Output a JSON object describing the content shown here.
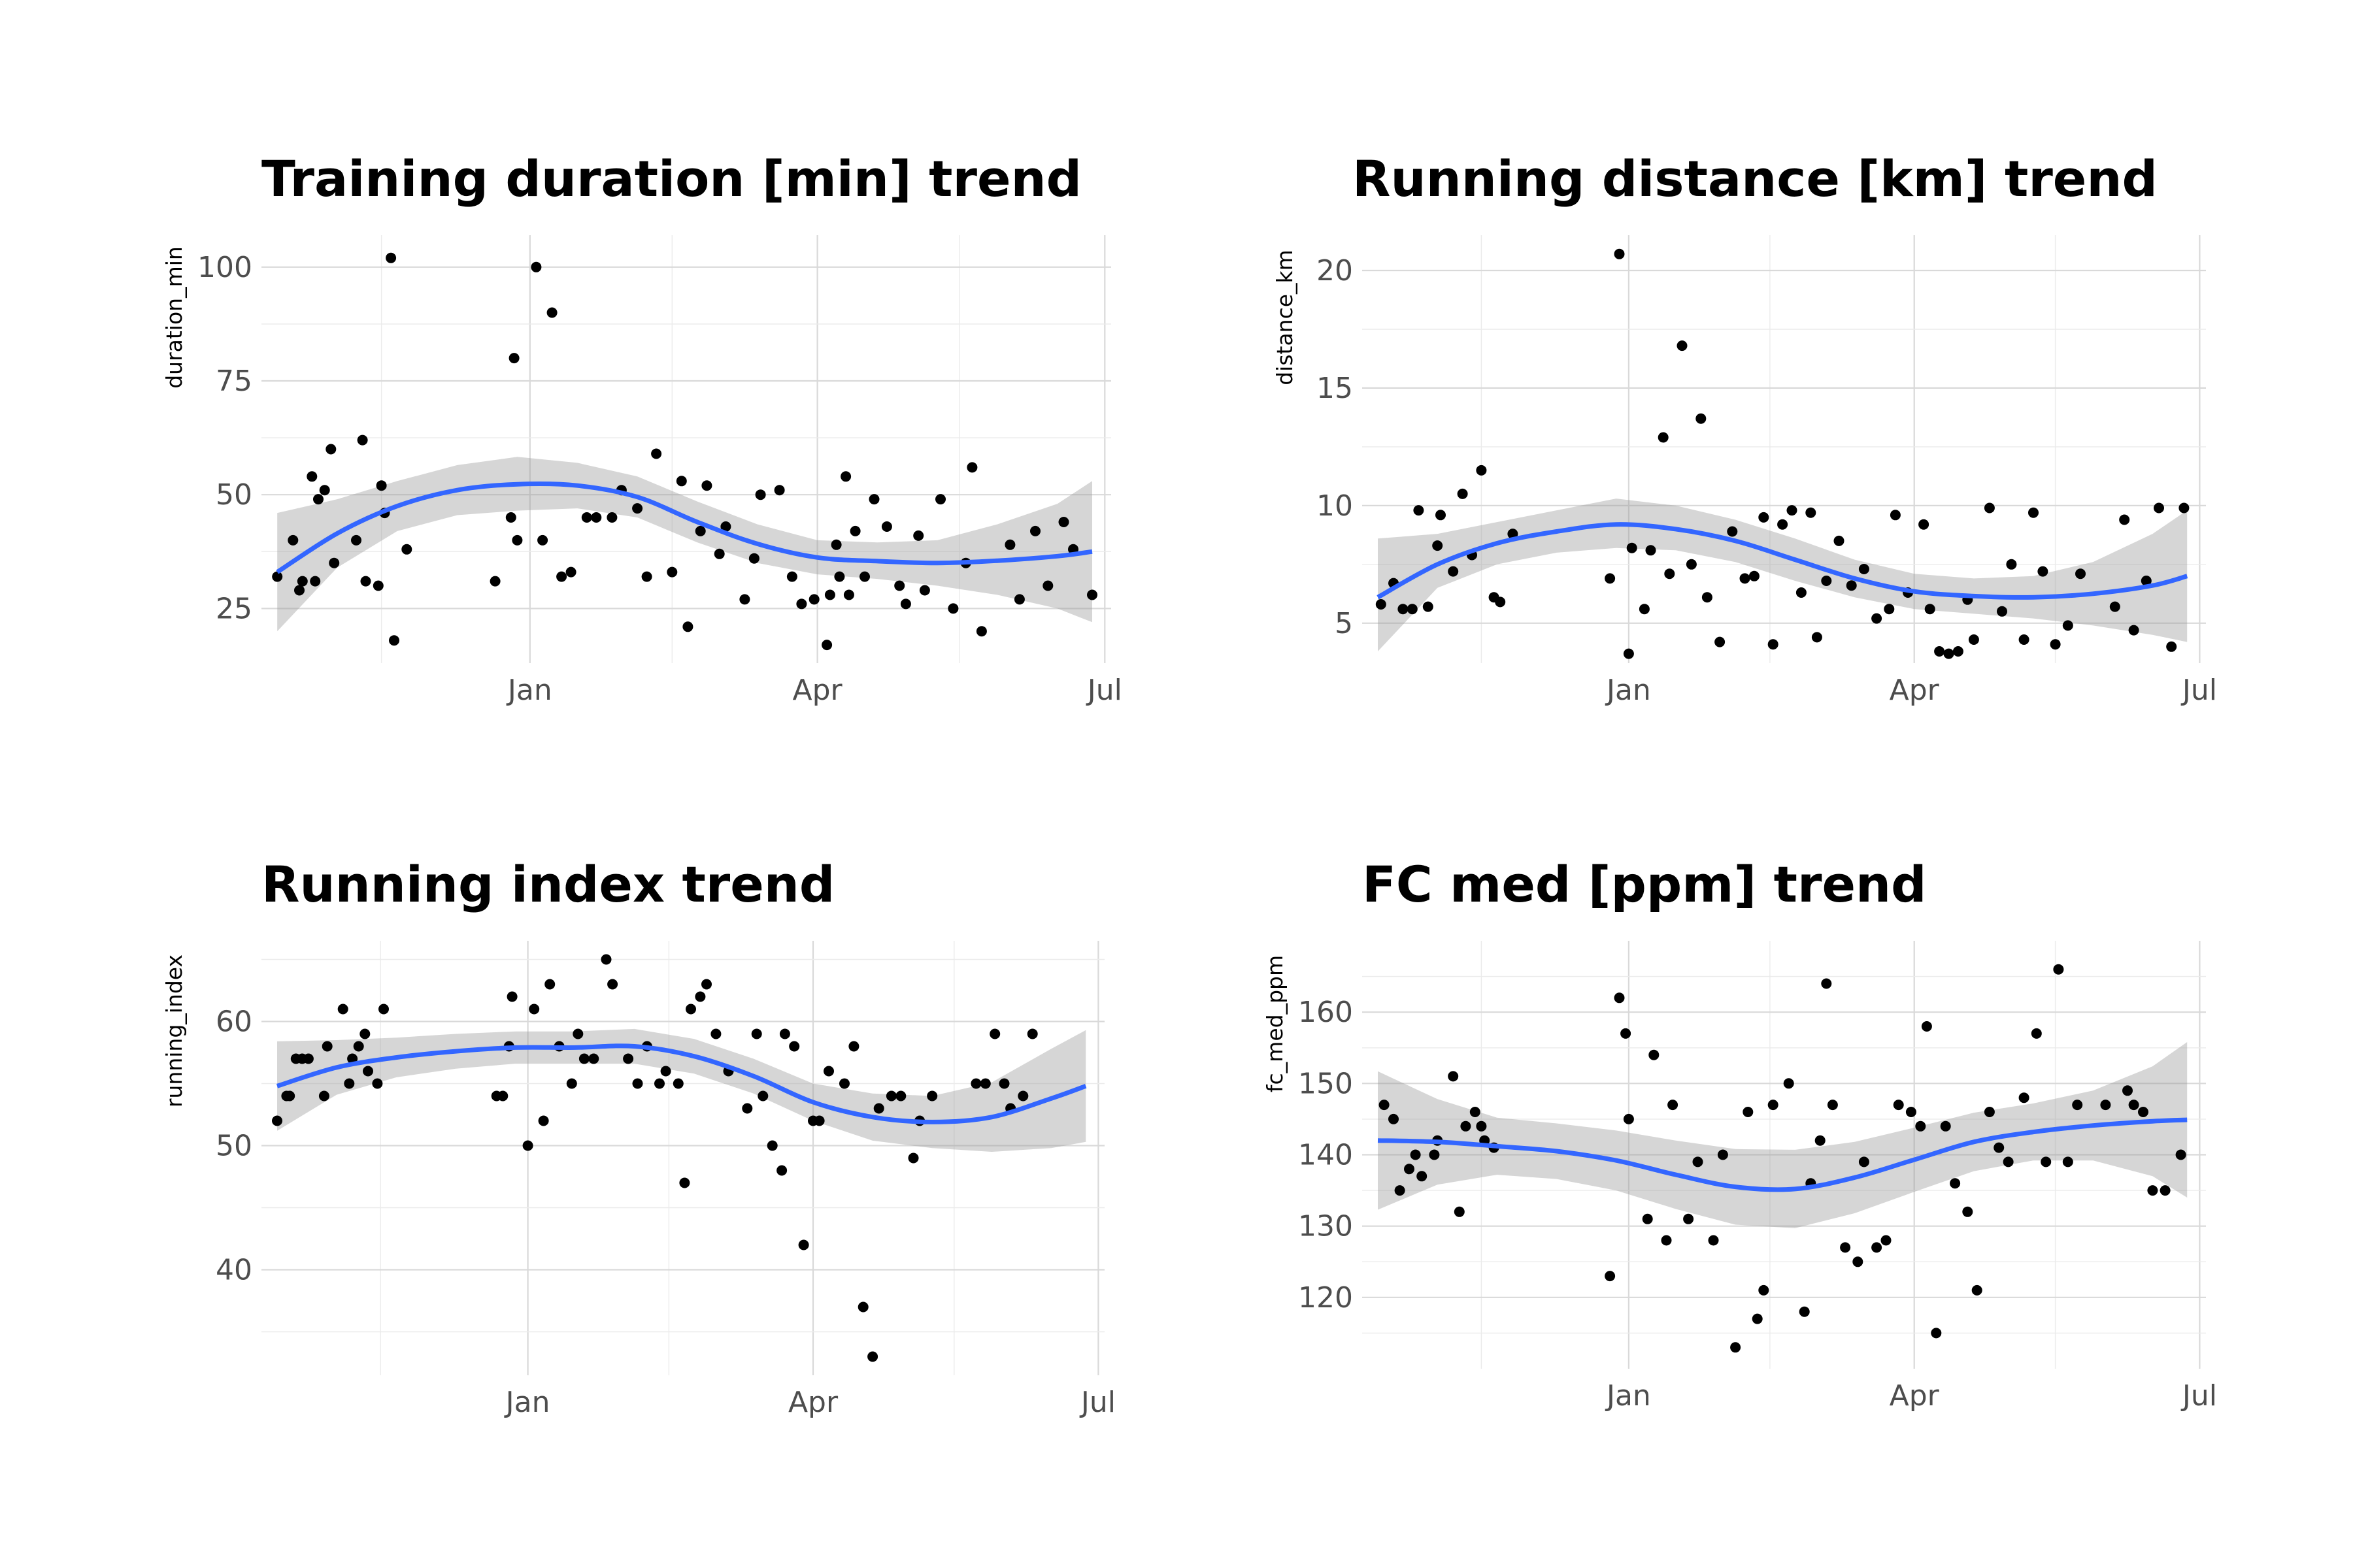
{
  "chart_data": [
    {
      "type": "scatter",
      "title": "Training duration [min] trend",
      "xlabel": "",
      "ylabel": "duration_min",
      "x_axis": "date",
      "x_ticks": [
        "Jan",
        "Apr",
        "Jul"
      ],
      "y_ticks": [
        25,
        50,
        75,
        100
      ],
      "ylim": [
        13,
        107
      ],
      "grid": true,
      "legend": "none",
      "points": {
        "x": [
          "2023-10-13",
          "2023-10-18",
          "2023-10-20",
          "2023-10-21",
          "2023-10-24",
          "2023-10-25",
          "2023-10-26",
          "2023-10-28",
          "2023-10-30",
          "2023-10-31",
          "2023-11-07",
          "2023-11-09",
          "2023-11-10",
          "2023-11-14",
          "2023-11-15",
          "2023-11-16",
          "2023-11-18",
          "2023-11-19",
          "2023-11-23",
          "2023-12-21",
          "2023-12-26",
          "2023-12-27",
          "2023-12-28",
          "2024-01-03",
          "2024-01-05",
          "2024-01-08",
          "2024-01-11",
          "2024-01-14",
          "2024-01-19",
          "2024-01-22",
          "2024-01-27",
          "2024-01-30",
          "2024-02-04",
          "2024-02-07",
          "2024-02-10",
          "2024-02-15",
          "2024-02-18",
          "2024-02-20",
          "2024-02-24",
          "2024-02-26",
          "2024-03-01",
          "2024-03-03",
          "2024-03-09",
          "2024-03-12",
          "2024-03-14",
          "2024-03-20",
          "2024-03-24",
          "2024-03-27",
          "2024-03-31",
          "2024-04-04",
          "2024-04-05",
          "2024-04-07",
          "2024-04-08",
          "2024-04-10",
          "2024-04-11",
          "2024-04-13",
          "2024-04-16",
          "2024-04-19",
          "2024-04-23",
          "2024-04-27",
          "2024-04-29",
          "2024-05-03",
          "2024-05-05",
          "2024-05-10",
          "2024-05-14",
          "2024-05-18",
          "2024-05-20",
          "2024-05-23",
          "2024-06-01",
          "2024-06-04",
          "2024-06-09",
          "2024-06-13",
          "2024-06-18",
          "2024-06-21",
          "2024-06-27"
        ],
        "y": [
          32,
          40,
          29,
          31,
          54,
          31,
          49,
          51,
          60,
          35,
          40,
          62,
          31,
          30,
          52,
          46,
          102,
          18,
          38,
          31,
          45,
          80,
          40,
          100,
          40,
          90,
          32,
          33,
          45,
          45,
          45,
          51,
          47,
          32,
          59,
          33,
          53,
          21,
          42,
          52,
          37,
          43,
          27,
          36,
          50,
          51,
          32,
          26,
          27,
          17,
          28,
          39,
          32,
          54,
          28,
          42,
          32,
          49,
          43,
          30,
          26,
          41,
          29,
          49,
          25,
          35,
          56,
          20,
          39,
          27,
          42,
          30,
          44,
          38,
          28
        ]
      },
      "smooth": {
        "x": [
          "2023-10-13",
          "2023-11-01",
          "2023-11-20",
          "2023-12-09",
          "2023-12-28",
          "2024-01-16",
          "2024-02-04",
          "2024-02-23",
          "2024-03-13",
          "2024-04-01",
          "2024-04-20",
          "2024-05-09",
          "2024-05-28",
          "2024-06-16",
          "2024-06-27"
        ],
        "y": [
          33,
          41.5,
          47.5,
          51,
          52.3,
          52,
          49.5,
          44,
          39.2,
          36.2,
          35.4,
          35,
          35.5,
          36.5,
          37.5
        ],
        "ymin": [
          20,
          34,
          42,
          45.5,
          46.5,
          47,
          45,
          39.5,
          35,
          32.5,
          31.5,
          30,
          28,
          25,
          22
        ],
        "ymax": [
          46,
          49,
          53,
          56.5,
          58.3,
          57,
          54,
          48.5,
          43.5,
          40,
          39.5,
          40,
          43.5,
          48,
          53
        ]
      }
    },
    {
      "type": "scatter",
      "title": "Running distance [km] trend",
      "xlabel": "",
      "ylabel": "distance_km",
      "x_axis": "date",
      "x_ticks": [
        "Jan",
        "Apr",
        "Jul"
      ],
      "y_ticks": [
        5,
        10,
        15,
        20
      ],
      "ylim": [
        3.3,
        21.5
      ],
      "grid": true,
      "legend": "none",
      "points": {
        "x": [
          "2023-10-14",
          "2023-10-18",
          "2023-10-21",
          "2023-10-24",
          "2023-10-26",
          "2023-10-29",
          "2023-11-01",
          "2023-11-02",
          "2023-11-06",
          "2023-11-09",
          "2023-11-12",
          "2023-11-15",
          "2023-11-19",
          "2023-11-21",
          "2023-11-25",
          "2023-12-26",
          "2023-12-29",
          "2024-01-01",
          "2024-01-02",
          "2024-01-06",
          "2024-01-08",
          "2024-01-12",
          "2024-01-14",
          "2024-01-18",
          "2024-01-21",
          "2024-01-24",
          "2024-01-26",
          "2024-01-30",
          "2024-02-03",
          "2024-02-07",
          "2024-02-10",
          "2024-02-13",
          "2024-02-16",
          "2024-02-19",
          "2024-02-22",
          "2024-02-25",
          "2024-02-28",
          "2024-03-01",
          "2024-03-04",
          "2024-03-08",
          "2024-03-12",
          "2024-03-16",
          "2024-03-20",
          "2024-03-24",
          "2024-03-26",
          "2024-03-30",
          "2024-04-04",
          "2024-04-06",
          "2024-04-09",
          "2024-04-12",
          "2024-04-15",
          "2024-04-18",
          "2024-04-20",
          "2024-04-25",
          "2024-04-29",
          "2024-05-02",
          "2024-05-06",
          "2024-05-09",
          "2024-05-12",
          "2024-05-16",
          "2024-05-20",
          "2024-05-24",
          "2024-06-04",
          "2024-06-07",
          "2024-06-10",
          "2024-06-14",
          "2024-06-18",
          "2024-06-22",
          "2024-06-26"
        ],
        "y": [
          5.8,
          6.7,
          5.6,
          5.6,
          9.8,
          5.7,
          8.3,
          9.6,
          7.2,
          10.5,
          7.9,
          11.5,
          6.1,
          5.9,
          8.8,
          6.9,
          20.7,
          3.7,
          8.2,
          5.6,
          8.1,
          12.9,
          7.1,
          16.8,
          7.5,
          13.7,
          6.1,
          4.2,
          8.9,
          6.9,
          7.0,
          9.5,
          4.1,
          9.2,
          9.8,
          6.3,
          9.7,
          4.4,
          6.8,
          8.5,
          6.6,
          7.3,
          5.2,
          5.6,
          9.6,
          6.3,
          9.2,
          5.6,
          3.8,
          3.7,
          3.8,
          6.0,
          4.3,
          9.9,
          5.5,
          7.5,
          4.3,
          9.7,
          7.2,
          4.1,
          4.9,
          7.1,
          5.7,
          9.4,
          4.7,
          6.8,
          9.9,
          4.0,
          9.9
        ]
      },
      "smooth": {
        "x": [
          "2023-10-13",
          "2023-11-01",
          "2023-11-20",
          "2023-12-09",
          "2023-12-28",
          "2024-01-16",
          "2024-02-04",
          "2024-02-23",
          "2024-03-13",
          "2024-04-01",
          "2024-04-20",
          "2024-05-09",
          "2024-05-28",
          "2024-06-16",
          "2024-06-27"
        ],
        "y": [
          6.1,
          7.5,
          8.4,
          8.9,
          9.2,
          9.0,
          8.5,
          7.7,
          6.9,
          6.35,
          6.15,
          6.1,
          6.25,
          6.6,
          7.0
        ],
        "ymin": [
          3.8,
          6.5,
          7.5,
          8.0,
          8.2,
          8.1,
          7.6,
          6.8,
          6.1,
          5.6,
          5.4,
          5.2,
          4.9,
          4.5,
          4.2
        ],
        "ymax": [
          8.6,
          8.8,
          9.3,
          9.8,
          10.3,
          10.0,
          9.4,
          8.6,
          7.7,
          7.1,
          6.9,
          7.0,
          7.6,
          8.8,
          9.8
        ]
      }
    },
    {
      "type": "scatter",
      "title": "Running index trend",
      "xlabel": "",
      "ylabel": "running_index",
      "x_axis": "date",
      "x_ticks": [
        "Jan",
        "Apr",
        "Jul"
      ],
      "y_ticks": [
        40,
        50,
        60
      ],
      "ylim": [
        31.5,
        66.5
      ],
      "grid": true,
      "legend": "none",
      "points": {
        "x": [
          "2023-10-13",
          "2023-10-16",
          "2023-10-17",
          "2023-10-19",
          "2023-10-21",
          "2023-10-23",
          "2023-10-28",
          "2023-10-29",
          "2023-11-03",
          "2023-11-05",
          "2023-11-06",
          "2023-11-08",
          "2023-11-10",
          "2023-11-11",
          "2023-11-14",
          "2023-11-16",
          "2023-12-22",
          "2023-12-24",
          "2023-12-26",
          "2023-12-27",
          "2024-01-01",
          "2024-01-03",
          "2024-01-06",
          "2024-01-08",
          "2024-01-11",
          "2024-01-15",
          "2024-01-17",
          "2024-01-19",
          "2024-01-22",
          "2024-01-26",
          "2024-01-28",
          "2024-02-02",
          "2024-02-05",
          "2024-02-08",
          "2024-02-12",
          "2024-02-14",
          "2024-02-18",
          "2024-02-20",
          "2024-02-22",
          "2024-02-25",
          "2024-02-27",
          "2024-03-01",
          "2024-03-05",
          "2024-03-11",
          "2024-03-14",
          "2024-03-16",
          "2024-03-19",
          "2024-03-22",
          "2024-03-23",
          "2024-03-26",
          "2024-03-29",
          "2024-04-01",
          "2024-04-03",
          "2024-04-06",
          "2024-04-11",
          "2024-04-14",
          "2024-04-17",
          "2024-04-20",
          "2024-04-22",
          "2024-04-26",
          "2024-04-29",
          "2024-05-03",
          "2024-05-05",
          "2024-05-09",
          "2024-05-23",
          "2024-05-26",
          "2024-05-29",
          "2024-06-01",
          "2024-06-03",
          "2024-06-07",
          "2024-06-10"
        ],
        "y": [
          52,
          54,
          54,
          57,
          57,
          57,
          54,
          58,
          61,
          55,
          57,
          58,
          59,
          56,
          55,
          61,
          54,
          54,
          58,
          62,
          50,
          61,
          52,
          63,
          58,
          55,
          59,
          57,
          57,
          65,
          63,
          57,
          55,
          58,
          55,
          56,
          55,
          47,
          61,
          62,
          63,
          59,
          56,
          53,
          59,
          54,
          50,
          48,
          59,
          58,
          42,
          52,
          52,
          56,
          55,
          58,
          37,
          33,
          53,
          54,
          54,
          49,
          52,
          54,
          55,
          55,
          59,
          55,
          53,
          54,
          59
        ]
      },
      "smooth": {
        "x": [
          "2023-10-13",
          "2023-11-01",
          "2023-11-20",
          "2023-12-09",
          "2023-12-28",
          "2024-01-16",
          "2024-02-04",
          "2024-02-23",
          "2024-03-13",
          "2024-04-01",
          "2024-04-20",
          "2024-05-09",
          "2024-05-28",
          "2024-06-16",
          "2024-06-27"
        ],
        "y": [
          54.8,
          56.3,
          57.1,
          57.6,
          57.9,
          57.9,
          58.0,
          57.2,
          55.6,
          53.5,
          52.3,
          51.9,
          52.3,
          53.8,
          54.8
        ],
        "ymin": [
          51.2,
          54.1,
          55.5,
          56.2,
          56.6,
          56.6,
          56.6,
          55.8,
          54.2,
          52.0,
          50.4,
          49.8,
          49.5,
          49.8,
          50.3
        ],
        "ymax": [
          58.4,
          58.5,
          58.7,
          59.0,
          59.2,
          59.2,
          59.4,
          58.6,
          57.0,
          55.0,
          54.2,
          54.0,
          55.1,
          57.8,
          59.3
        ]
      }
    },
    {
      "type": "scatter",
      "title": "FC med [ppm] trend",
      "xlabel": "",
      "ylabel": "fc_med_ppm",
      "x_axis": "date",
      "x_ticks": [
        "Jan",
        "Apr",
        "Jul"
      ],
      "y_ticks": [
        120,
        130,
        140,
        150,
        160
      ],
      "ylim": [
        110,
        170
      ],
      "grid": true,
      "legend": "none",
      "points": {
        "x": [
          "2023-10-15",
          "2023-10-18",
          "2023-10-20",
          "2023-10-23",
          "2023-10-25",
          "2023-10-27",
          "2023-10-31",
          "2023-11-01",
          "2023-11-06",
          "2023-11-08",
          "2023-11-10",
          "2023-11-13",
          "2023-11-15",
          "2023-11-16",
          "2023-11-19",
          "2023-12-26",
          "2023-12-29",
          "2023-12-31",
          "2024-01-01",
          "2024-01-07",
          "2024-01-09",
          "2024-01-13",
          "2024-01-15",
          "2024-01-20",
          "2024-01-23",
          "2024-01-28",
          "2024-01-31",
          "2024-02-04",
          "2024-02-08",
          "2024-02-11",
          "2024-02-13",
          "2024-02-16",
          "2024-02-21",
          "2024-02-26",
          "2024-02-28",
          "2024-03-02",
          "2024-03-04",
          "2024-03-06",
          "2024-03-10",
          "2024-03-14",
          "2024-03-16",
          "2024-03-20",
          "2024-03-23",
          "2024-03-27",
          "2024-03-31",
          "2024-04-03",
          "2024-04-05",
          "2024-04-08",
          "2024-04-11",
          "2024-04-14",
          "2024-04-18",
          "2024-04-21",
          "2024-04-25",
          "2024-04-28",
          "2024-05-01",
          "2024-05-06",
          "2024-05-10",
          "2024-05-13",
          "2024-05-17",
          "2024-05-20",
          "2024-05-23",
          "2024-06-01",
          "2024-06-08",
          "2024-06-10",
          "2024-06-13",
          "2024-06-16",
          "2024-06-20",
          "2024-06-25"
        ],
        "y": [
          147,
          145,
          135,
          138,
          140,
          137,
          140,
          142,
          151,
          132,
          144,
          146,
          144,
          142,
          141,
          123,
          162,
          157,
          145,
          131,
          154,
          128,
          147,
          131,
          139,
          128,
          140,
          113,
          146,
          117,
          121,
          147,
          150,
          118,
          136,
          142,
          164,
          147,
          127,
          125,
          139,
          127,
          128,
          147,
          146,
          144,
          158,
          115,
          144,
          136,
          132,
          121,
          146,
          141,
          139,
          148,
          157,
          139,
          166,
          139,
          147,
          147,
          149,
          147,
          146,
          135,
          135,
          140
        ]
      },
      "smooth": {
        "x": [
          "2023-10-13",
          "2023-11-01",
          "2023-11-20",
          "2023-12-09",
          "2023-12-28",
          "2024-01-16",
          "2024-02-04",
          "2024-02-23",
          "2024-03-13",
          "2024-04-01",
          "2024-04-20",
          "2024-05-09",
          "2024-05-28",
          "2024-06-16",
          "2024-06-27"
        ],
        "y": [
          142,
          141.8,
          141.2,
          140.5,
          139.2,
          137.2,
          135.5,
          135.2,
          136.8,
          139.3,
          141.8,
          143.2,
          144.1,
          144.7,
          144.9
        ],
        "ymin": [
          132.3,
          135.8,
          137.2,
          136.6,
          135.0,
          132.4,
          130.2,
          129.7,
          131.8,
          134.8,
          137.7,
          139.2,
          139.2,
          137.0,
          134.0
        ],
        "ymax": [
          151.7,
          147.8,
          145.2,
          144.4,
          143.4,
          142.0,
          140.8,
          140.7,
          141.8,
          143.8,
          145.9,
          147.2,
          149.0,
          152.4,
          155.8
        ]
      }
    }
  ]
}
